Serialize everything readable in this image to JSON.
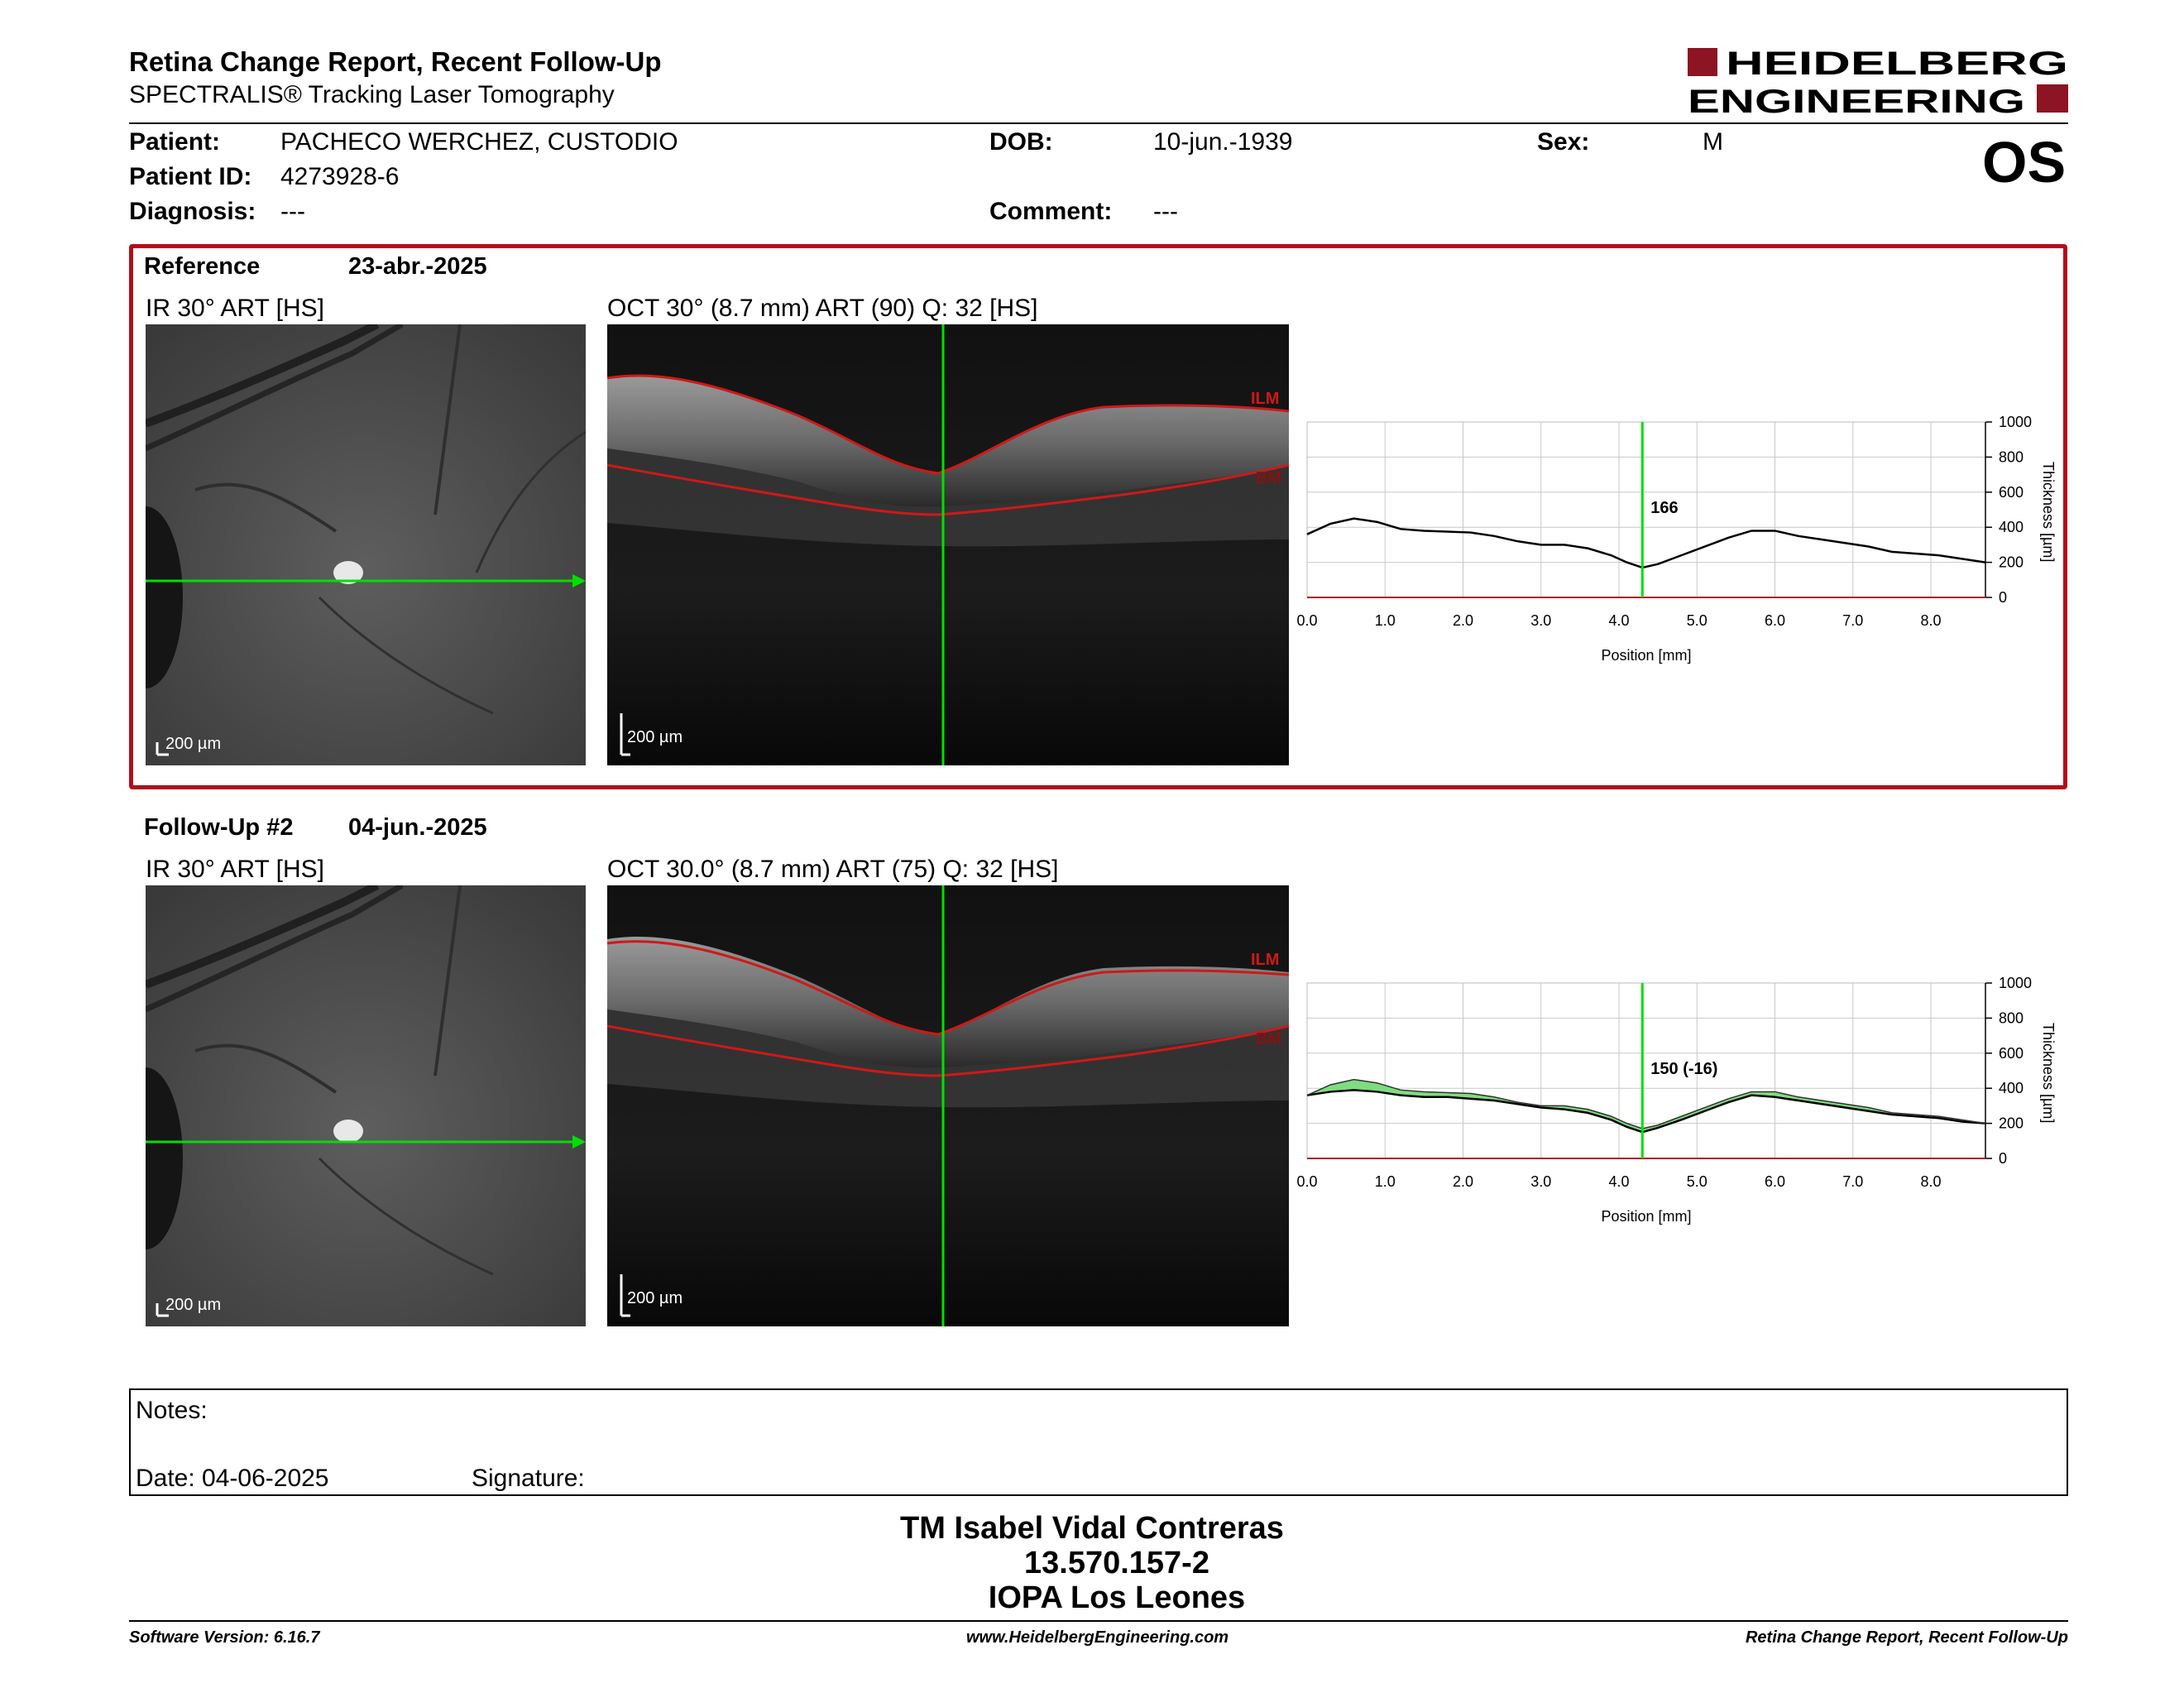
{
  "report": {
    "title": "Retina Change Report, Recent Follow-Up",
    "subtitle": "SPECTRALIS® Tracking Laser Tomography",
    "brand_line1": "HEIDELBERG",
    "brand_line2": "ENGINEERING",
    "eye": "OS"
  },
  "patient": {
    "name_label": "Patient:",
    "name": "PACHECO WERCHEZ, CUSTODIO",
    "id_label": "Patient ID:",
    "id": "4273928-6",
    "diagnosis_label": "Diagnosis:",
    "diagnosis": "---",
    "dob_label": "DOB:",
    "dob": "10-jun.-1939",
    "comment_label": "Comment:",
    "comment": "---",
    "sex_label": "Sex:",
    "sex": "M"
  },
  "reference": {
    "label": "Reference",
    "date": "23-abr.-2025",
    "ir_title": "IR 30° ART [HS]",
    "oct_title": "OCT 30° (8.7 mm) ART (90) Q: 32 [HS]",
    "ir_scale": "200 µm",
    "oct_scale": "200 µm",
    "ilm": "ILM",
    "bm": "BM"
  },
  "followup": {
    "label": "Follow-Up #2",
    "date": "04-jun.-2025",
    "ir_title": "IR 30° ART [HS]",
    "oct_title": "OCT 30.0° (8.7 mm) ART (75) Q: 32 [HS]",
    "ir_scale": "200 µm",
    "oct_scale": "200 µm",
    "ilm": "ILM",
    "bm": "BM"
  },
  "notes": {
    "notes_label": "Notes:",
    "date_label": "Date: 04-06-2025",
    "signature_label": "Signature:"
  },
  "signature": {
    "name": "TM Isabel Vidal Contreras",
    "rut": "13.570.157-2",
    "place": "IOPA Los Leones"
  },
  "footer": {
    "left": "Software Version: 6.16.7",
    "center": "www.HeidelbergEngineering.com",
    "right": "Retina Change Report, Recent Follow-Up"
  },
  "colors": {
    "frame_red": "#b30c1a",
    "scan_green": "#00e000",
    "layer_red": "#d01818"
  },
  "chart_data": [
    {
      "type": "line",
      "xlabel": "Position [mm]",
      "ylabel": "Thickness [µm]",
      "xlim": [
        0,
        8.7
      ],
      "ylim": [
        0,
        1000
      ],
      "x_ticks": [
        "0.0",
        "1.0",
        "2.0",
        "3.0",
        "4.0",
        "5.0",
        "6.0",
        "7.0",
        "8.0"
      ],
      "y_ticks": [
        "0",
        "200",
        "400",
        "600",
        "800",
        "1000"
      ],
      "marker_x": 4.3,
      "marker_label": "166",
      "grid": true,
      "series": [
        {
          "x": [
            0,
            0.3,
            0.6,
            0.9,
            1.2,
            1.5,
            1.8,
            2.1,
            2.4,
            2.7,
            3.0,
            3.3,
            3.6,
            3.9,
            4.1,
            4.3,
            4.5,
            4.8,
            5.1,
            5.4,
            5.7,
            6.0,
            6.3,
            6.6,
            6.9,
            7.2,
            7.5,
            7.8,
            8.1,
            8.4,
            8.7
          ],
          "y": [
            360,
            420,
            450,
            430,
            390,
            380,
            375,
            370,
            350,
            320,
            300,
            300,
            280,
            240,
            200,
            170,
            190,
            240,
            290,
            340,
            380,
            380,
            350,
            330,
            310,
            290,
            260,
            250,
            240,
            220,
            200
          ]
        }
      ]
    },
    {
      "type": "line",
      "xlabel": "Position [mm]",
      "ylabel": "Thickness [µm]",
      "xlim": [
        0,
        8.7
      ],
      "ylim": [
        0,
        1000
      ],
      "x_ticks": [
        "0.0",
        "1.0",
        "2.0",
        "3.0",
        "4.0",
        "5.0",
        "6.0",
        "7.0",
        "8.0"
      ],
      "y_ticks": [
        "0",
        "200",
        "400",
        "600",
        "800",
        "1000"
      ],
      "marker_x": 4.3,
      "marker_label": "150 (-16)",
      "grid": true,
      "series": [
        {
          "x": [
            0,
            0.3,
            0.6,
            0.9,
            1.2,
            1.5,
            1.8,
            2.1,
            2.4,
            2.7,
            3.0,
            3.3,
            3.6,
            3.9,
            4.1,
            4.3,
            4.5,
            4.8,
            5.1,
            5.4,
            5.7,
            6.0,
            6.3,
            6.6,
            6.9,
            7.2,
            7.5,
            7.8,
            8.1,
            8.4,
            8.7
          ],
          "y": [
            360,
            380,
            390,
            380,
            360,
            350,
            350,
            340,
            330,
            310,
            290,
            280,
            260,
            220,
            180,
            150,
            175,
            220,
            270,
            320,
            360,
            350,
            330,
            310,
            290,
            270,
            250,
            240,
            230,
            210,
            200
          ]
        },
        {
          "x": [
            0,
            0.3,
            0.6,
            0.9,
            1.2,
            1.5,
            1.8,
            2.1,
            2.4,
            2.7,
            3.0,
            3.3,
            3.6,
            3.9,
            4.1,
            4.3,
            4.5,
            4.8,
            5.1,
            5.4,
            5.7,
            6.0,
            6.3,
            6.6,
            6.9,
            7.2,
            7.5,
            7.8,
            8.1,
            8.4,
            8.7
          ],
          "y": [
            360,
            420,
            450,
            430,
            390,
            380,
            375,
            370,
            350,
            320,
            300,
            300,
            280,
            240,
            200,
            170,
            190,
            240,
            290,
            340,
            380,
            380,
            350,
            330,
            310,
            290,
            260,
            250,
            240,
            220,
            200
          ]
        }
      ]
    }
  ]
}
